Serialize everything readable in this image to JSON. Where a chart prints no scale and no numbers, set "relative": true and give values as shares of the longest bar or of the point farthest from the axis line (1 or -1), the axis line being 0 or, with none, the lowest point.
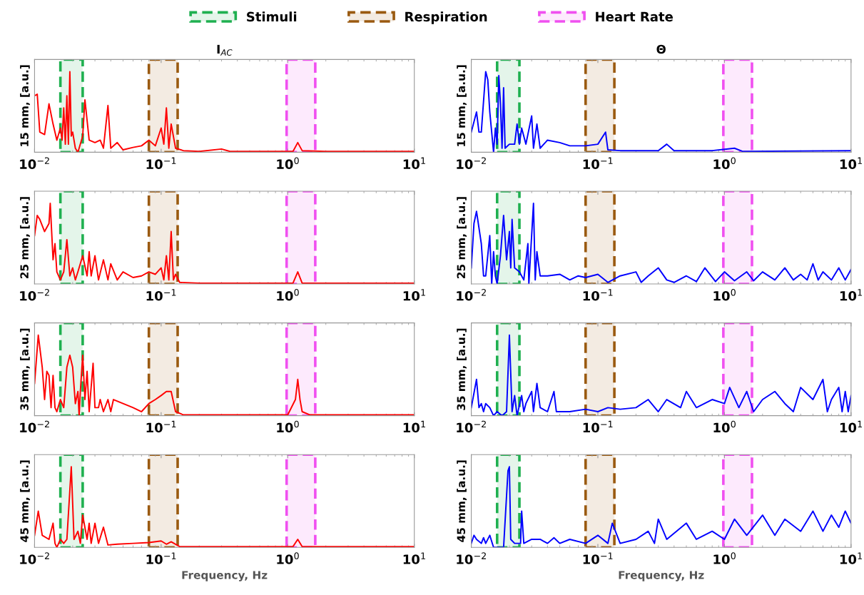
{
  "chart_data": [
    {
      "type": "line",
      "relative": true,
      "title": "I$_{AC}$",
      "ylabel": "15 mm, [a.u.]",
      "log": "x",
      "xlim": [
        0.01,
        10
      ],
      "xticks": [
        {
          "value": 0.01,
          "label": "10$^{−2}$"
        },
        {
          "value": 0.1,
          "label": "10$^{−1}$"
        },
        {
          "value": 1,
          "label": "10$^{0}$"
        },
        {
          "value": 10,
          "label": "10$^{1}$"
        }
      ],
      "legend": "top",
      "bands": [
        {
          "axis": "x",
          "from": 0.016,
          "to": 0.024,
          "label": "Stimuli",
          "color": "#1fb050"
        },
        {
          "axis": "x",
          "from": 0.08,
          "to": 0.135,
          "label": "Respiration",
          "color": "#9a5a10"
        },
        {
          "axis": "x",
          "from": 0.98,
          "to": 1.65,
          "label": "Heart Rate",
          "color": "#f050f0"
        }
      ],
      "series": [
        {
          "color": "#ff0000",
          "x": [
            0.01,
            0.0105,
            0.011,
            0.012,
            0.013,
            0.014,
            0.015,
            0.016,
            0.0165,
            0.017,
            0.0175,
            0.018,
            0.0185,
            0.019,
            0.0195,
            0.02,
            0.021,
            0.022,
            0.024,
            0.025,
            0.027,
            0.03,
            0.033,
            0.035,
            0.038,
            0.04,
            0.045,
            0.05,
            0.06,
            0.07,
            0.08,
            0.09,
            0.1,
            0.105,
            0.11,
            0.115,
            0.12,
            0.13,
            0.15,
            0.2,
            0.3,
            0.35,
            0.6,
            1.1,
            1.2,
            1.3,
            2,
            5,
            10
          ],
          "values": [
            0.7,
            0.72,
            0.25,
            0.22,
            0.6,
            0.35,
            0.15,
            0.3,
            0.15,
            0.55,
            0.1,
            0.7,
            0.1,
            1.0,
            0.2,
            0.25,
            0.05,
            0.0,
            0.2,
            0.65,
            0.15,
            0.12,
            0.15,
            0.05,
            0.58,
            0.05,
            0.12,
            0.03,
            0.06,
            0.08,
            0.15,
            0.08,
            0.3,
            0.1,
            0.55,
            0.05,
            0.35,
            0.05,
            0.02,
            0.01,
            0.04,
            0.01,
            0.01,
            0.01,
            0.12,
            0.02,
            0.01,
            0.01,
            0.01
          ]
        }
      ]
    },
    {
      "type": "line",
      "relative": true,
      "title": "Θ",
      "ylabel": "15 mm, [a.u.]",
      "log": "x",
      "xlim": [
        0.01,
        10
      ],
      "xticks": [
        {
          "value": 0.01,
          "label": "10$^{−2}$"
        },
        {
          "value": 0.1,
          "label": "10$^{−1}$"
        },
        {
          "value": 1,
          "label": "10$^{0}$"
        },
        {
          "value": 10,
          "label": "10$^{1}$"
        }
      ],
      "bands": [
        {
          "axis": "x",
          "from": 0.016,
          "to": 0.024,
          "color": "#1fb050"
        },
        {
          "axis": "x",
          "from": 0.08,
          "to": 0.135,
          "color": "#9a5a10"
        },
        {
          "axis": "x",
          "from": 0.98,
          "to": 1.65,
          "color": "#f050f0"
        }
      ],
      "series": [
        {
          "color": "#0000ff",
          "x": [
            0.01,
            0.011,
            0.0115,
            0.012,
            0.013,
            0.0135,
            0.014,
            0.015,
            0.0155,
            0.016,
            0.0165,
            0.017,
            0.0175,
            0.018,
            0.0185,
            0.02,
            0.022,
            0.023,
            0.024,
            0.025,
            0.027,
            0.03,
            0.031,
            0.033,
            0.035,
            0.04,
            0.05,
            0.06,
            0.08,
            0.1,
            0.115,
            0.12,
            0.15,
            0.2,
            0.3,
            0.35,
            0.4,
            0.8,
            1.2,
            1.4,
            10
          ],
          "values": [
            0.25,
            0.5,
            0.25,
            0.25,
            1.0,
            0.9,
            0.5,
            0.0,
            0.3,
            0.1,
            0.95,
            0.6,
            0.05,
            0.8,
            0.05,
            0.1,
            0.1,
            0.35,
            0.1,
            0.3,
            0.1,
            0.45,
            0.05,
            0.35,
            0.05,
            0.15,
            0.12,
            0.08,
            0.08,
            0.1,
            0.25,
            0.03,
            0.02,
            0.02,
            0.02,
            0.1,
            0.02,
            0.02,
            0.05,
            0.01,
            0.02
          ]
        }
      ]
    },
    {
      "type": "line",
      "relative": true,
      "ylabel": "25 mm, [a.u.]",
      "log": "x",
      "xlim": [
        0.01,
        10
      ],
      "xticks": [
        {
          "value": 0.01,
          "label": "10$^{−2}$"
        },
        {
          "value": 0.1,
          "label": "10$^{−1}$"
        },
        {
          "value": 1,
          "label": "10$^{0}$"
        },
        {
          "value": 10,
          "label": "10$^{1}$"
        }
      ],
      "bands": [
        {
          "axis": "x",
          "from": 0.016,
          "to": 0.024,
          "color": "#1fb050"
        },
        {
          "axis": "x",
          "from": 0.08,
          "to": 0.135,
          "color": "#9a5a10"
        },
        {
          "axis": "x",
          "from": 0.98,
          "to": 1.65,
          "color": "#f050f0"
        }
      ],
      "series": [
        {
          "color": "#ff0000",
          "x": [
            0.01,
            0.0105,
            0.011,
            0.012,
            0.013,
            0.0133,
            0.014,
            0.0145,
            0.015,
            0.016,
            0.017,
            0.018,
            0.019,
            0.02,
            0.021,
            0.022,
            0.024,
            0.026,
            0.027,
            0.028,
            0.03,
            0.032,
            0.035,
            0.038,
            0.04,
            0.045,
            0.05,
            0.06,
            0.07,
            0.08,
            0.09,
            0.1,
            0.105,
            0.11,
            0.115,
            0.12,
            0.125,
            0.13,
            0.14,
            0.2,
            0.5,
            1.1,
            1.2,
            1.3,
            3,
            10
          ],
          "values": [
            0.6,
            0.85,
            0.8,
            0.65,
            0.75,
            1.0,
            0.3,
            0.5,
            0.15,
            0.05,
            0.15,
            0.55,
            0.1,
            0.2,
            0.05,
            0.15,
            0.35,
            0.1,
            0.4,
            0.1,
            0.35,
            0.05,
            0.3,
            0.05,
            0.25,
            0.05,
            0.15,
            0.08,
            0.1,
            0.15,
            0.12,
            0.2,
            0.05,
            0.35,
            0.05,
            0.65,
            0.05,
            0.12,
            0.02,
            0.01,
            0.01,
            0.01,
            0.15,
            0.01,
            0.01,
            0.01
          ]
        }
      ]
    },
    {
      "type": "line",
      "relative": true,
      "ylabel": "25 mm, [a.u.]",
      "log": "x",
      "xlim": [
        0.01,
        10
      ],
      "xticks": [
        {
          "value": 0.01,
          "label": "10$^{−2}$"
        },
        {
          "value": 0.1,
          "label": "10$^{−1}$"
        },
        {
          "value": 1,
          "label": "10$^{0}$"
        },
        {
          "value": 10,
          "label": "10$^{1}$"
        }
      ],
      "bands": [
        {
          "axis": "x",
          "from": 0.016,
          "to": 0.024,
          "color": "#1fb050"
        },
        {
          "axis": "x",
          "from": 0.08,
          "to": 0.135,
          "color": "#9a5a10"
        },
        {
          "axis": "x",
          "from": 0.98,
          "to": 1.65,
          "color": "#f050f0"
        }
      ],
      "series": [
        {
          "color": "#0000ff",
          "x": [
            0.01,
            0.0105,
            0.011,
            0.012,
            0.0125,
            0.013,
            0.014,
            0.0145,
            0.015,
            0.0155,
            0.016,
            0.017,
            0.018,
            0.019,
            0.02,
            0.0205,
            0.021,
            0.022,
            0.024,
            0.026,
            0.028,
            0.0285,
            0.031,
            0.032,
            0.033,
            0.035,
            0.04,
            0.05,
            0.06,
            0.07,
            0.08,
            0.1,
            0.12,
            0.15,
            0.2,
            0.22,
            0.25,
            0.3,
            0.35,
            0.4,
            0.5,
            0.6,
            0.7,
            0.85,
            1.0,
            1.2,
            1.5,
            1.7,
            2.0,
            2.5,
            3.0,
            3.5,
            4.0,
            4.5,
            5,
            5.5,
            6,
            7,
            8,
            9,
            10
          ],
          "values": [
            0.2,
            0.75,
            0.9,
            0.5,
            0.1,
            0.1,
            0.6,
            0.0,
            0.4,
            0.1,
            0.0,
            0.35,
            0.85,
            0.3,
            0.65,
            0.2,
            0.8,
            0.2,
            0.15,
            0.05,
            0.5,
            0.0,
            1.0,
            0.05,
            0.4,
            0.1,
            0.1,
            0.12,
            0.05,
            0.1,
            0.08,
            0.12,
            0.02,
            0.1,
            0.15,
            0.02,
            0.1,
            0.2,
            0.05,
            0.02,
            0.1,
            0.03,
            0.2,
            0.03,
            0.15,
            0.04,
            0.15,
            0.04,
            0.15,
            0.05,
            0.2,
            0.05,
            0.12,
            0.05,
            0.25,
            0.05,
            0.15,
            0.05,
            0.2,
            0.05,
            0.18
          ]
        }
      ]
    },
    {
      "type": "line",
      "relative": true,
      "ylabel": "35 mm, [a.u.]",
      "log": "x",
      "xlim": [
        0.01,
        10
      ],
      "xticks": [
        {
          "value": 0.01,
          "label": "10$^{−2}$"
        },
        {
          "value": 0.1,
          "label": "10$^{−1}$"
        },
        {
          "value": 1,
          "label": "10$^{0}$"
        },
        {
          "value": 10,
          "label": "10$^{1}$"
        }
      ],
      "bands": [
        {
          "axis": "x",
          "from": 0.016,
          "to": 0.024,
          "color": "#1fb050"
        },
        {
          "axis": "x",
          "from": 0.08,
          "to": 0.135,
          "color": "#9a5a10"
        },
        {
          "axis": "x",
          "from": 0.98,
          "to": 1.65,
          "color": "#f050f0"
        }
      ],
      "series": [
        {
          "color": "#ff0000",
          "x": [
            0.01,
            0.0107,
            0.0115,
            0.012,
            0.0125,
            0.013,
            0.0135,
            0.014,
            0.0145,
            0.015,
            0.016,
            0.017,
            0.018,
            0.019,
            0.02,
            0.021,
            0.022,
            0.0225,
            0.023,
            0.024,
            0.025,
            0.026,
            0.027,
            0.029,
            0.03,
            0.032,
            0.033,
            0.035,
            0.038,
            0.04,
            0.042,
            0.05,
            0.06,
            0.07,
            0.08,
            0.09,
            0.1,
            0.11,
            0.12,
            0.13,
            0.15,
            0.5,
            1.0,
            1.15,
            1.2,
            1.25,
            1.3,
            1.5,
            10
          ],
          "values": [
            0.4,
            1.0,
            0.6,
            0.2,
            0.55,
            0.5,
            0.1,
            0.5,
            0.1,
            0.05,
            0.2,
            0.1,
            0.6,
            0.75,
            0.6,
            0.15,
            0.3,
            0.0,
            0.3,
            0.75,
            0.2,
            0.55,
            0.05,
            0.65,
            0.1,
            0.1,
            0.2,
            0.05,
            0.2,
            0.05,
            0.2,
            0.15,
            0.1,
            0.05,
            0.15,
            0.2,
            0.25,
            0.3,
            0.3,
            0.05,
            0.01,
            0.01,
            0.01,
            0.2,
            0.45,
            0.2,
            0.05,
            0.01,
            0.01
          ]
        }
      ]
    },
    {
      "type": "line",
      "relative": true,
      "ylabel": "35 mm, [a.u.]",
      "log": "x",
      "xlim": [
        0.01,
        10
      ],
      "xticks": [
        {
          "value": 0.01,
          "label": "10$^{−2}$"
        },
        {
          "value": 0.1,
          "label": "10$^{−1}$"
        },
        {
          "value": 1,
          "label": "10$^{0}$"
        },
        {
          "value": 10,
          "label": "10$^{1}$"
        }
      ],
      "bands": [
        {
          "axis": "x",
          "from": 0.016,
          "to": 0.024,
          "color": "#1fb050"
        },
        {
          "axis": "x",
          "from": 0.08,
          "to": 0.135,
          "color": "#9a5a10"
        },
        {
          "axis": "x",
          "from": 0.98,
          "to": 1.65,
          "color": "#f050f0"
        }
      ],
      "series": [
        {
          "color": "#0000ff",
          "x": [
            0.01,
            0.011,
            0.0115,
            0.012,
            0.0125,
            0.013,
            0.014,
            0.015,
            0.016,
            0.0175,
            0.019,
            0.02,
            0.021,
            0.022,
            0.023,
            0.025,
            0.026,
            0.027,
            0.03,
            0.031,
            0.033,
            0.035,
            0.04,
            0.045,
            0.047,
            0.06,
            0.08,
            0.1,
            0.12,
            0.15,
            0.2,
            0.25,
            0.3,
            0.35,
            0.45,
            0.5,
            0.6,
            0.8,
            1.0,
            1.1,
            1.3,
            1.5,
            1.7,
            2,
            2.5,
            3,
            3.5,
            4,
            5,
            6,
            6.5,
            7,
            8,
            8.5,
            9,
            9.5,
            10
          ],
          "values": [
            0.1,
            0.45,
            0.1,
            0.15,
            0.05,
            0.15,
            0.1,
            0.0,
            0.05,
            0.0,
            0.05,
            1.0,
            0.05,
            0.25,
            0.0,
            0.25,
            0.05,
            0.15,
            0.3,
            0.05,
            0.4,
            0.1,
            0.05,
            0.3,
            0.05,
            0.05,
            0.08,
            0.05,
            0.1,
            0.08,
            0.1,
            0.2,
            0.05,
            0.2,
            0.1,
            0.3,
            0.1,
            0.2,
            0.15,
            0.35,
            0.1,
            0.3,
            0.05,
            0.2,
            0.3,
            0.15,
            0.05,
            0.35,
            0.2,
            0.45,
            0.05,
            0.2,
            0.35,
            0.05,
            0.3,
            0.05,
            0.25
          ]
        }
      ]
    },
    {
      "type": "line",
      "relative": true,
      "ylabel": "45 mm, [a.u.]",
      "xlabel": "Frequency, Hz",
      "log": "x",
      "xlim": [
        0.01,
        10
      ],
      "xticks": [
        {
          "value": 0.01,
          "label": "10$^{−2}$"
        },
        {
          "value": 0.1,
          "label": "10$^{−1}$"
        },
        {
          "value": 1,
          "label": "10$^{0}$"
        },
        {
          "value": 10,
          "label": "10$^{1}$"
        }
      ],
      "bands": [
        {
          "axis": "x",
          "from": 0.016,
          "to": 0.024,
          "color": "#1fb050"
        },
        {
          "axis": "x",
          "from": 0.08,
          "to": 0.135,
          "color": "#9a5a10"
        },
        {
          "axis": "x",
          "from": 0.98,
          "to": 1.65,
          "color": "#f050f0"
        }
      ],
      "series": [
        {
          "color": "#ff0000",
          "x": [
            0.01,
            0.0107,
            0.0115,
            0.013,
            0.014,
            0.0145,
            0.015,
            0.016,
            0.017,
            0.018,
            0.0195,
            0.0205,
            0.022,
            0.023,
            0.024,
            0.026,
            0.027,
            0.028,
            0.03,
            0.032,
            0.035,
            0.038,
            0.045,
            0.06,
            0.08,
            0.1,
            0.11,
            0.12,
            0.14,
            0.5,
            1.1,
            1.2,
            1.3,
            10
          ],
          "values": [
            0.15,
            0.45,
            0.15,
            0.1,
            0.3,
            0.05,
            0.0,
            0.1,
            0.05,
            0.1,
            1.0,
            0.1,
            0.2,
            0.05,
            0.4,
            0.1,
            0.3,
            0.05,
            0.3,
            0.05,
            0.25,
            0.03,
            0.04,
            0.05,
            0.06,
            0.08,
            0.04,
            0.07,
            0.01,
            0.01,
            0.01,
            0.1,
            0.01,
            0.01
          ]
        }
      ]
    },
    {
      "type": "line",
      "relative": true,
      "ylabel": "45 mm, [a.u.]",
      "xlabel": "Frequency, Hz",
      "log": "x",
      "xlim": [
        0.01,
        10
      ],
      "xticks": [
        {
          "value": 0.01,
          "label": "10$^{−2}$"
        },
        {
          "value": 0.1,
          "label": "10$^{−1}$"
        },
        {
          "value": 1,
          "label": "10$^{0}$"
        },
        {
          "value": 10,
          "label": "10$^{1}$"
        }
      ],
      "bands": [
        {
          "axis": "x",
          "from": 0.016,
          "to": 0.024,
          "color": "#1fb050"
        },
        {
          "axis": "x",
          "from": 0.08,
          "to": 0.135,
          "color": "#9a5a10"
        },
        {
          "axis": "x",
          "from": 0.98,
          "to": 1.65,
          "color": "#f050f0"
        }
      ],
      "series": [
        {
          "color": "#0000ff",
          "x": [
            0.01,
            0.0105,
            0.011,
            0.012,
            0.0125,
            0.013,
            0.014,
            0.015,
            0.018,
            0.0195,
            0.02,
            0.0205,
            0.022,
            0.0245,
            0.025,
            0.026,
            0.03,
            0.035,
            0.04,
            0.045,
            0.05,
            0.06,
            0.08,
            0.1,
            0.12,
            0.13,
            0.15,
            0.2,
            0.25,
            0.28,
            0.3,
            0.35,
            0.5,
            0.6,
            0.8,
            1.0,
            1.2,
            1.5,
            2,
            2.5,
            3,
            4,
            5,
            6,
            7,
            8,
            9,
            10
          ],
          "values": [
            0.05,
            0.15,
            0.1,
            0.05,
            0.12,
            0.05,
            0.15,
            0.0,
            0.0,
            0.95,
            1.0,
            0.1,
            0.05,
            0.05,
            0.45,
            0.05,
            0.1,
            0.1,
            0.05,
            0.12,
            0.05,
            0.1,
            0.05,
            0.15,
            0.05,
            0.3,
            0.05,
            0.1,
            0.2,
            0.05,
            0.35,
            0.1,
            0.3,
            0.1,
            0.2,
            0.1,
            0.35,
            0.15,
            0.4,
            0.15,
            0.35,
            0.2,
            0.45,
            0.2,
            0.4,
            0.25,
            0.45,
            0.3
          ]
        }
      ]
    }
  ]
}
